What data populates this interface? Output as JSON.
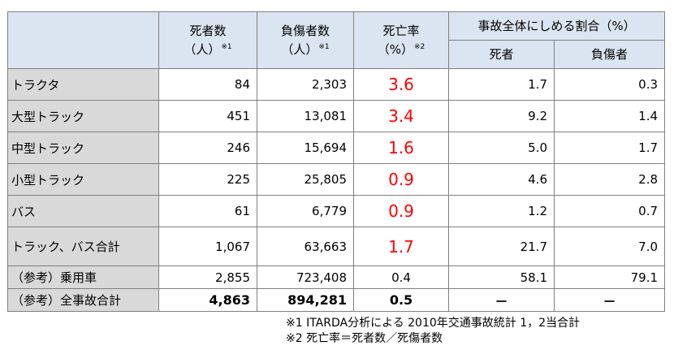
{
  "table": {
    "headers": {
      "deaths": "死者数",
      "deaths_unit": "（人）",
      "deaths_note": "※1",
      "injuries": "負傷者数",
      "injuries_unit": "（人）",
      "injuries_note": "※1",
      "rate": "死亡率",
      "rate_unit": "（%）",
      "rate_note": "※2",
      "share": "事故全体にしめる割合（%）",
      "share_deaths": "死者",
      "share_injuries": "負傷者"
    },
    "rows": [
      {
        "label": "トラクタ",
        "deaths": "84",
        "injuries": "2,303",
        "rate": "3.6",
        "share_deaths": "1.7",
        "share_injuries": "0.3"
      },
      {
        "label": "大型トラック",
        "deaths": "451",
        "injuries": "13,081",
        "rate": "3.4",
        "share_deaths": "9.2",
        "share_injuries": "1.4"
      },
      {
        "label": "中型トラック",
        "deaths": "246",
        "injuries": "15,694",
        "rate": "1.6",
        "share_deaths": "5.0",
        "share_injuries": "1.7"
      },
      {
        "label": "小型トラック",
        "deaths": "225",
        "injuries": "25,805",
        "rate": "0.9",
        "share_deaths": "4.6",
        "share_injuries": "2.8"
      },
      {
        "label": "バス",
        "deaths": "61",
        "injuries": "6,779",
        "rate": "0.9",
        "share_deaths": "1.2",
        "share_injuries": "0.7"
      },
      {
        "label": "トラック、バス合計",
        "deaths": "1,067",
        "injuries": "63,663",
        "rate": "1.7",
        "share_deaths": "21.7",
        "share_injuries": "7.0"
      },
      {
        "label": "（参考）乗用車",
        "deaths": "2,855",
        "injuries": "723,408",
        "rate": "0.4",
        "share_deaths": "58.1",
        "share_injuries": "79.1"
      },
      {
        "label": "（参考）全事故合計",
        "deaths": "4,863",
        "injuries": "894,281",
        "rate": "0.5",
        "share_deaths": "－",
        "share_injuries": "－"
      }
    ]
  },
  "notes": {
    "note1": "※1 ITARDA分析による 2010年交通事故統計 1，2当合計",
    "note2": "※2 死亡率＝死者数／死傷者数"
  },
  "colors": {
    "header_bg": "#dbe5f1",
    "label_bg": "#d9d9d9",
    "highlight_rate": "#ff0000"
  }
}
